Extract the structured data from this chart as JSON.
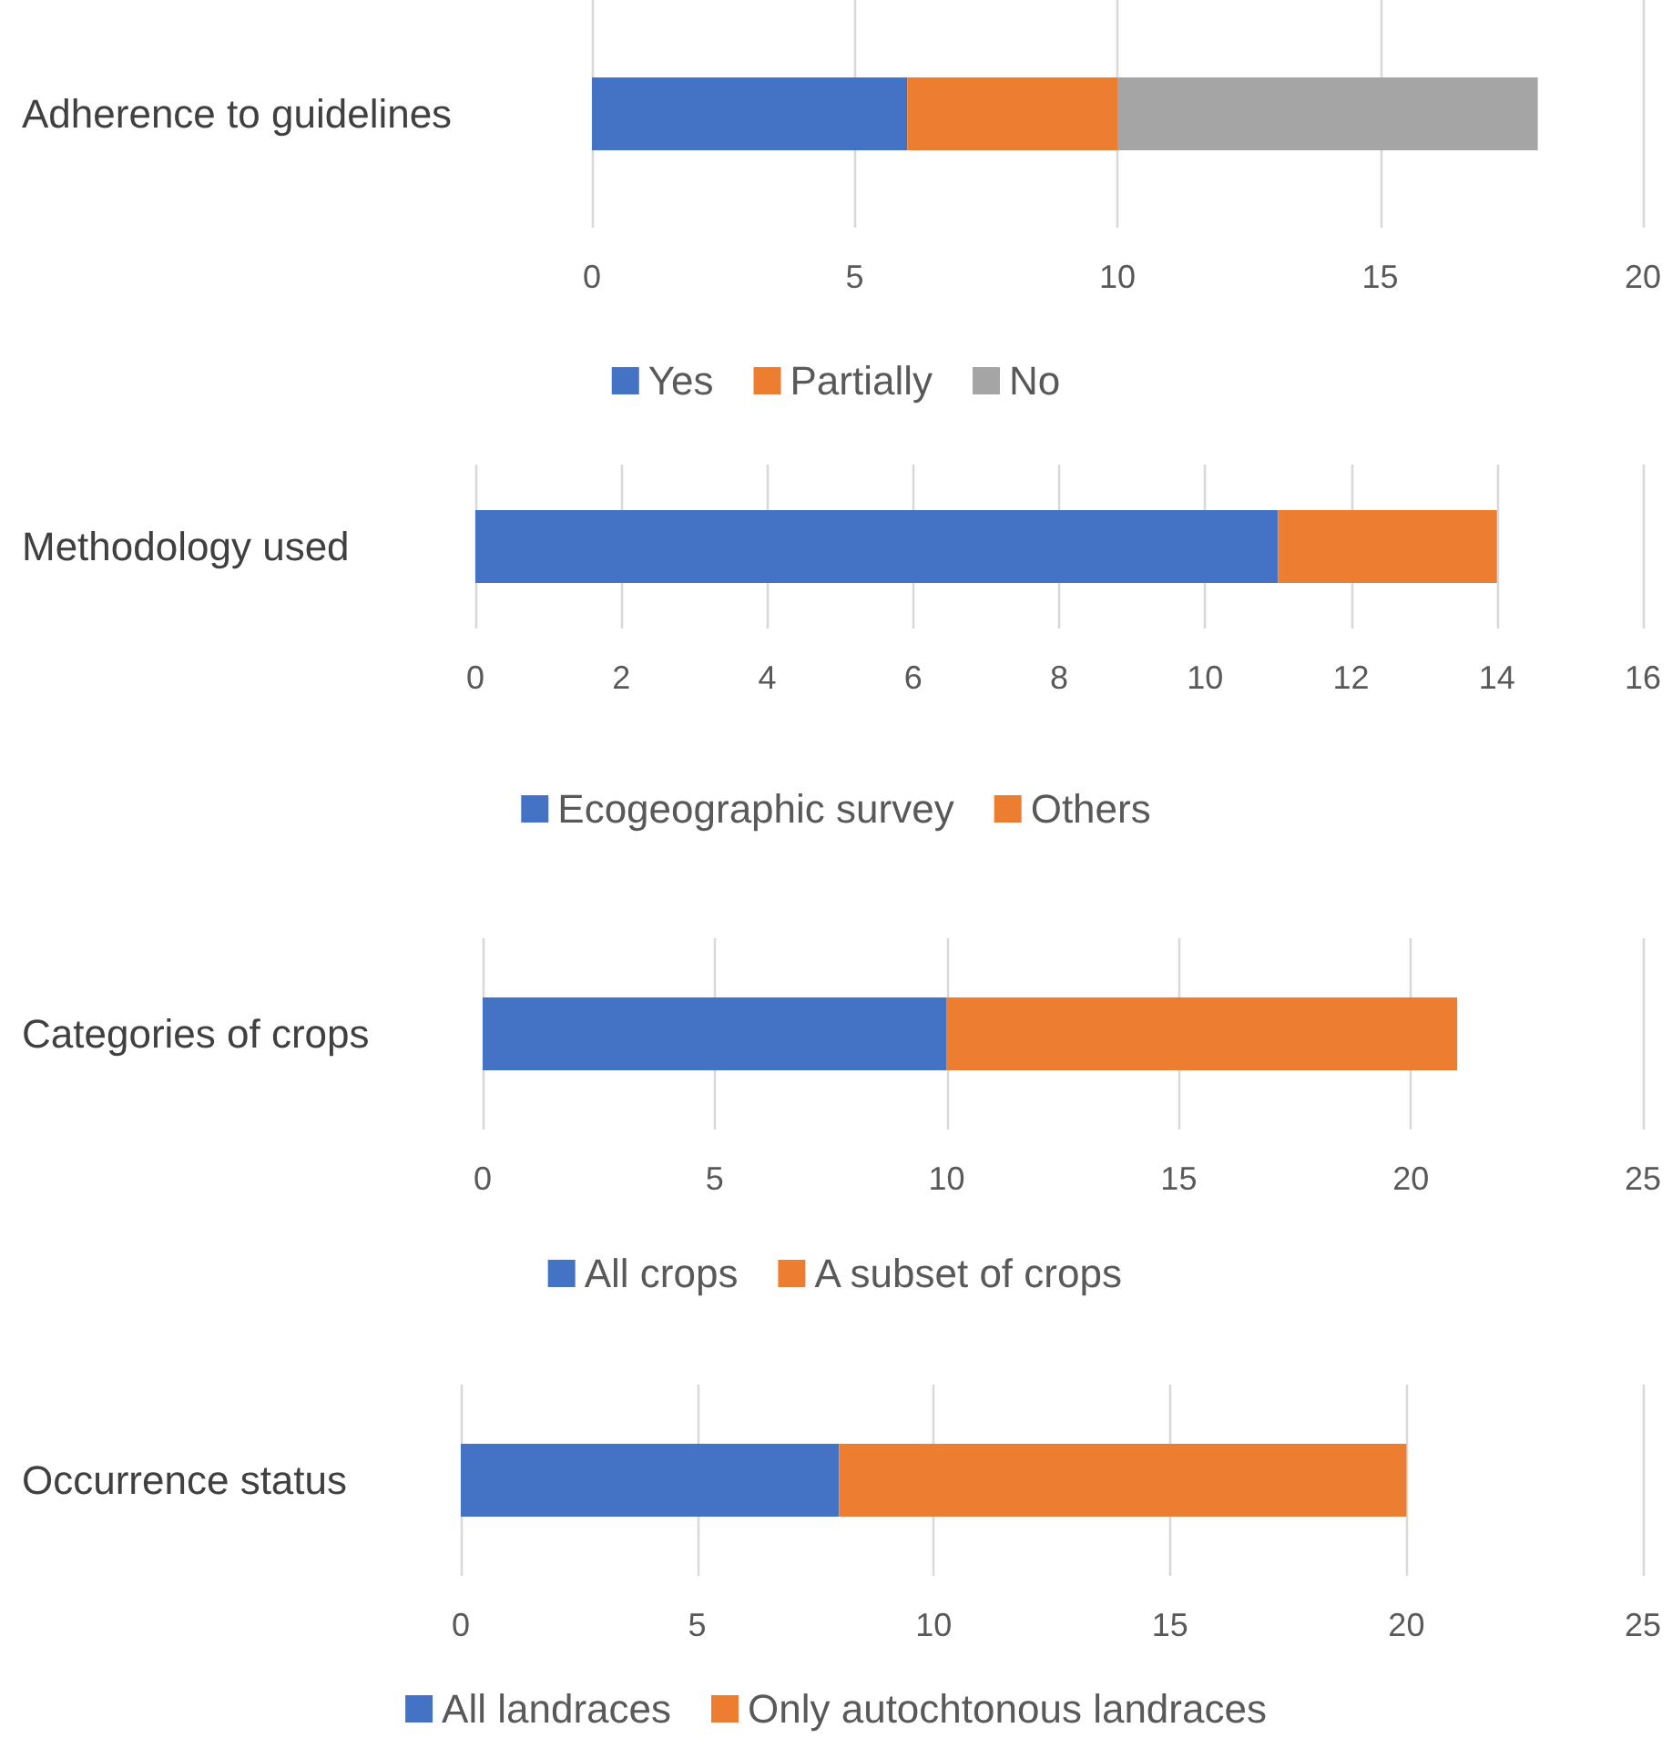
{
  "chart_data": [
    {
      "type": "bar",
      "orientation": "horizontal",
      "stacked": true,
      "categories": [
        "Adherence to guidelines"
      ],
      "series": [
        {
          "name": "Yes",
          "color": "#4472c4",
          "values": [
            6
          ]
        },
        {
          "name": "Partially",
          "color": "#ed7d31",
          "values": [
            4
          ]
        },
        {
          "name": "No",
          "color": "#a5a5a5",
          "values": [
            8
          ]
        }
      ],
      "xlim": [
        0,
        20
      ],
      "xticks": [
        0,
        5,
        10,
        15,
        20
      ],
      "grid": "x",
      "legend": "bottom"
    },
    {
      "type": "bar",
      "orientation": "horizontal",
      "stacked": true,
      "categories": [
        "Methodology used"
      ],
      "series": [
        {
          "name": "Ecogeographic survey",
          "color": "#4472c4",
          "values": [
            11
          ]
        },
        {
          "name": "Others",
          "color": "#ed7d31",
          "values": [
            3
          ]
        }
      ],
      "xlim": [
        0,
        16
      ],
      "xticks": [
        0,
        2,
        4,
        6,
        8,
        10,
        12,
        14,
        16
      ],
      "grid": "x",
      "legend": "bottom"
    },
    {
      "type": "bar",
      "orientation": "horizontal",
      "stacked": true,
      "categories": [
        "Categories of crops"
      ],
      "series": [
        {
          "name": "All crops",
          "color": "#4472c4",
          "values": [
            10
          ]
        },
        {
          "name": "A subset of crops",
          "color": "#ed7d31",
          "values": [
            11
          ]
        }
      ],
      "xlim": [
        0,
        25
      ],
      "xticks": [
        0,
        5,
        10,
        15,
        20,
        25
      ],
      "grid": "x",
      "legend": "bottom"
    },
    {
      "type": "bar",
      "orientation": "horizontal",
      "stacked": true,
      "categories": [
        "Occurrence status"
      ],
      "series": [
        {
          "name": "All landraces",
          "color": "#4472c4",
          "values": [
            8
          ]
        },
        {
          "name": "Only autochtonous landraces",
          "color": "#ed7d31",
          "values": [
            12
          ]
        }
      ],
      "xlim": [
        0,
        25
      ],
      "xticks": [
        0,
        5,
        10,
        15,
        20,
        25
      ],
      "grid": "x",
      "legend": "bottom"
    }
  ]
}
